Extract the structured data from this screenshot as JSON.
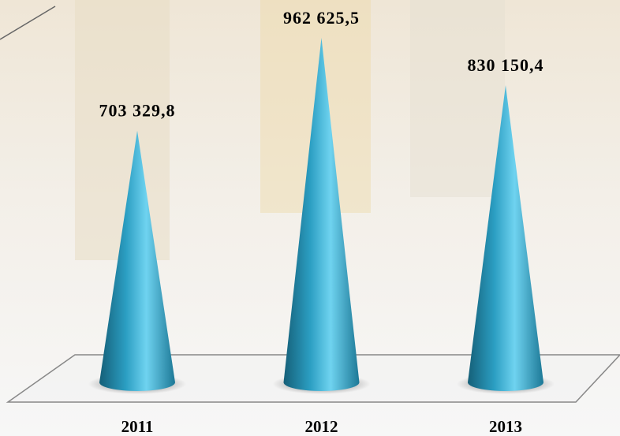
{
  "chart_data": {
    "type": "bar",
    "categories": [
      "2011",
      "2012",
      "2013"
    ],
    "values": [
      703329.8,
      962625.5,
      830150.4
    ],
    "value_labels": [
      "703 329,8",
      "962 625,5",
      "830 150,4"
    ],
    "color": "#2b9ec2"
  }
}
